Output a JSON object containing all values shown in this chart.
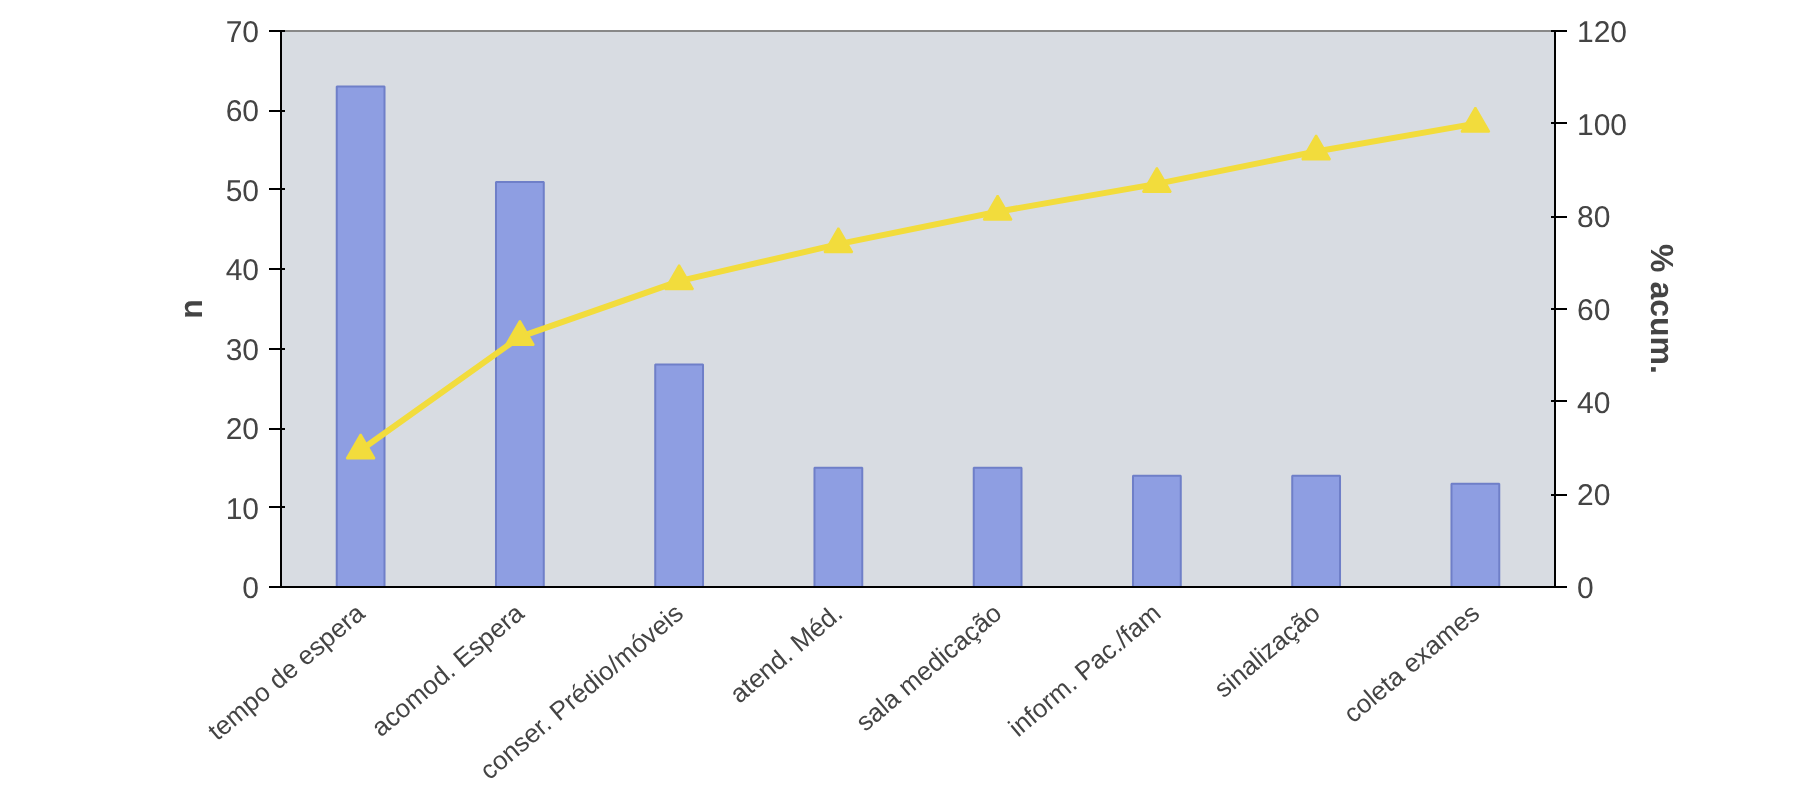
{
  "chart_data": {
    "type": "bar",
    "categories": [
      "tempo de espera",
      "acomod. Espera",
      "conser. Prédio/móveis",
      "atend. Méd.",
      "sala medicação",
      "inform. Pac./fam",
      "sinalização",
      "coleta exames"
    ],
    "series": [
      {
        "color": "#8e9ee2",
        "values": [
          63,
          51,
          28,
          15,
          15,
          14,
          14,
          13
        ]
      },
      {
        "type": "line",
        "axis": "y2",
        "color": "#f2dc3c",
        "marker": "triangle",
        "values": [
          29.5,
          54,
          66,
          74,
          81,
          87,
          94,
          100
        ]
      }
    ],
    "ylabel": "n",
    "y2label": "% acum.",
    "ylim": [
      0,
      70
    ],
    "yticks": [
      0,
      10,
      20,
      30,
      40,
      50,
      60,
      70
    ],
    "y2lim": [
      0,
      120
    ],
    "y2ticks": [
      0,
      20,
      40,
      60,
      80,
      100,
      120
    ],
    "grid": false
  }
}
